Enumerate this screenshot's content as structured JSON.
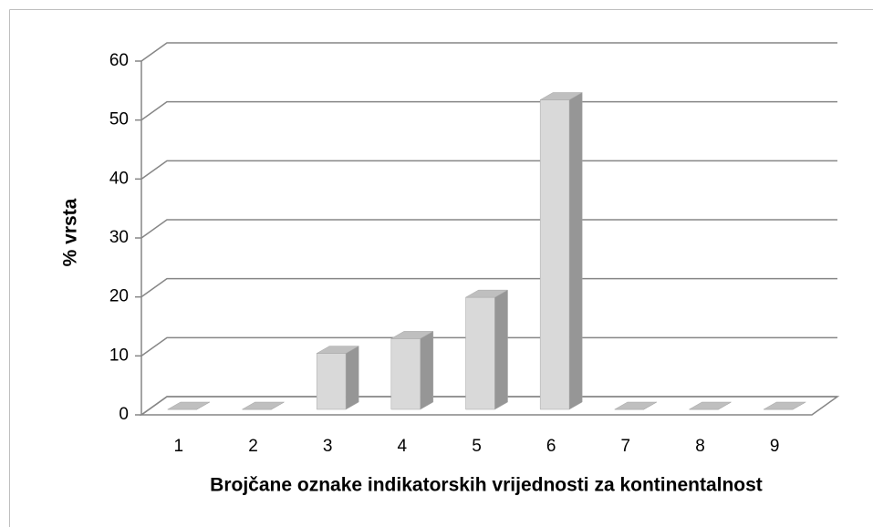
{
  "chart_data": {
    "type": "bar",
    "x_label": "Brojčane oznake indikatorskih vrijednosti za kontinentalnost",
    "y_label": "% vrsta",
    "categories": [
      "1",
      "2",
      "3",
      "4",
      "5",
      "6",
      "7",
      "8",
      "9"
    ],
    "values": [
      0,
      0,
      9.5,
      12,
      19,
      52.5,
      0,
      0,
      0
    ],
    "color": "#d9d9d9",
    "ylim": [
      0,
      60
    ],
    "yticks": [
      0,
      10,
      20,
      30,
      40,
      50,
      60
    ],
    "grid": true
  }
}
